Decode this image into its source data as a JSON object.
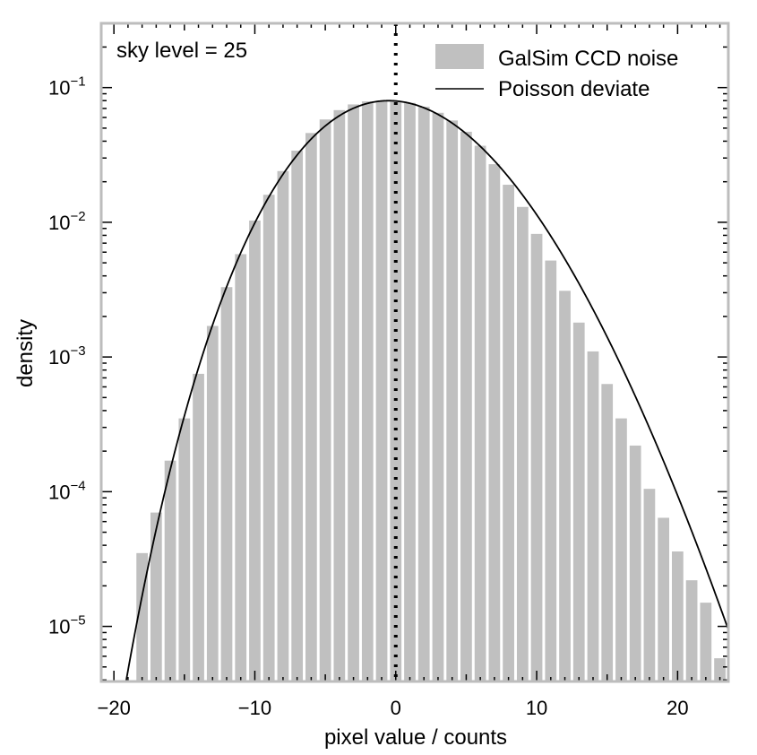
{
  "chart_data": {
    "type": "bar",
    "xlabel": "pixel value / counts",
    "ylabel": "density",
    "xlim": [
      -20.9,
      23.6
    ],
    "ylim": [
      3.9e-06,
      0.3
    ],
    "yscale": "log",
    "grid": false,
    "legend_position": "top-right",
    "x_ticks": [
      -20,
      -10,
      0,
      10,
      20
    ],
    "x_tick_labels": [
      "−20",
      "−10",
      "0",
      "10",
      "20"
    ],
    "y_ticks": [
      {
        "value": 0.1,
        "base": "10",
        "exp": "−1"
      },
      {
        "value": 0.01,
        "base": "10",
        "exp": "−2"
      },
      {
        "value": 0.001,
        "base": "10",
        "exp": "−3"
      },
      {
        "value": 0.0001,
        "base": "10",
        "exp": "−4"
      },
      {
        "value": 1e-05,
        "base": "10",
        "exp": "−5"
      }
    ],
    "annotation": "sky level = 25",
    "reference_line_x": 0,
    "bar_color": "#c0c0c0",
    "line_color": "#000000",
    "histogram": {
      "name": "GalSim CCD noise",
      "bins": [
        {
          "x": -18,
          "value": 3.5e-05
        },
        {
          "x": -17,
          "value": 7e-05
        },
        {
          "x": -16,
          "value": 0.00017
        },
        {
          "x": -15,
          "value": 0.00035
        },
        {
          "x": -14,
          "value": 0.00075
        },
        {
          "x": -13,
          "value": 0.0017
        },
        {
          "x": -12,
          "value": 0.0033
        },
        {
          "x": -11,
          "value": 0.0058
        },
        {
          "x": -10,
          "value": 0.0103
        },
        {
          "x": -9,
          "value": 0.016
        },
        {
          "x": -8,
          "value": 0.024
        },
        {
          "x": -7,
          "value": 0.034
        },
        {
          "x": -6,
          "value": 0.046
        },
        {
          "x": -5,
          "value": 0.058
        },
        {
          "x": -4,
          "value": 0.068
        },
        {
          "x": -3,
          "value": 0.075
        },
        {
          "x": -2,
          "value": 0.079
        },
        {
          "x": -1,
          "value": 0.08
        },
        {
          "x": 0,
          "value": 0.079
        },
        {
          "x": 1,
          "value": 0.077
        },
        {
          "x": 2,
          "value": 0.072
        },
        {
          "x": 3,
          "value": 0.065
        },
        {
          "x": 4,
          "value": 0.057
        },
        {
          "x": 5,
          "value": 0.047
        },
        {
          "x": 6,
          "value": 0.037
        },
        {
          "x": 7,
          "value": 0.027
        },
        {
          "x": 8,
          "value": 0.019
        },
        {
          "x": 9,
          "value": 0.013
        },
        {
          "x": 10,
          "value": 0.0082
        },
        {
          "x": 11,
          "value": 0.0052
        },
        {
          "x": 12,
          "value": 0.0031
        },
        {
          "x": 13,
          "value": 0.0018
        },
        {
          "x": 14,
          "value": 0.0011
        },
        {
          "x": 15,
          "value": 0.00063
        },
        {
          "x": 16,
          "value": 0.00035
        },
        {
          "x": 17,
          "value": 0.00022
        },
        {
          "x": 18,
          "value": 0.000105
        },
        {
          "x": 19,
          "value": 6.4e-05
        },
        {
          "x": 20,
          "value": 3.6e-05
        },
        {
          "x": 21,
          "value": 2.2e-05
        },
        {
          "x": 22,
          "value": 1.5e-05
        },
        {
          "x": 23,
          "value": 5.8e-06
        }
      ]
    },
    "curve": {
      "name": "Poisson deviate",
      "mean": 25
    }
  }
}
